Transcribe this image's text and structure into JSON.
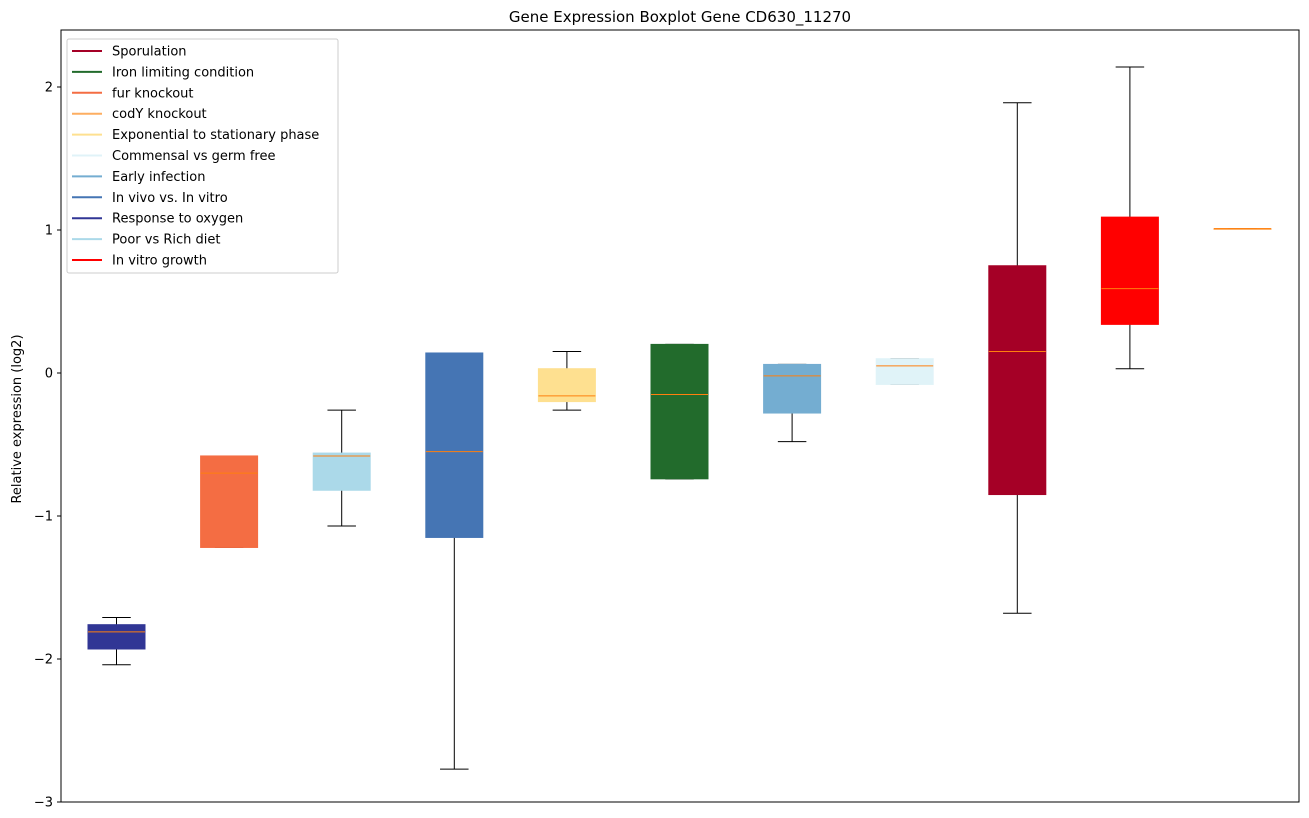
{
  "chart_data": {
    "type": "boxplot",
    "title": "Gene Expression Boxplot Gene CD630_11270",
    "xlabel": "",
    "ylabel": "Relative expression (log2)",
    "ylim": [
      -3.0,
      2.38
    ],
    "yticks": [
      {
        "value": 2,
        "label": "2"
      },
      {
        "value": 1,
        "label": "1"
      },
      {
        "value": 0,
        "label": "0"
      },
      {
        "value": -1,
        "label": "−1"
      },
      {
        "value": -2,
        "label": "−2"
      },
      {
        "value": -3,
        "label": "−3"
      }
    ],
    "grid": false,
    "legend_position": "top-left",
    "legend": [
      {
        "label": "Sporulation",
        "color": "#a50026"
      },
      {
        "label": "Iron limiting condition",
        "color": "#226b2c"
      },
      {
        "label": "fur knockout",
        "color": "#f46d43"
      },
      {
        "label": "codY knockout",
        "color": "#fdae61"
      },
      {
        "label": "Exponential to stationary phase",
        "color": "#fee090"
      },
      {
        "label": "Commensal vs germ free",
        "color": "#e0f3f8"
      },
      {
        "label": "Early infection",
        "color": "#74add1"
      },
      {
        "label": "In vivo vs. In vitro",
        "color": "#4575b4"
      },
      {
        "label": "Response to oxygen",
        "color": "#313695"
      },
      {
        "label": "Poor vs Rich diet",
        "color": "#abd9e9"
      },
      {
        "label": "In vitro growth",
        "color": "#ff0000"
      }
    ],
    "boxes": [
      {
        "group": "Response to oxygen",
        "color": "#313695",
        "whisker_low": -2.04,
        "q1": -1.93,
        "median": -1.81,
        "q3": -1.76,
        "whisker_high": -1.71
      },
      {
        "group": "fur knockout",
        "color": "#f46d43",
        "whisker_low": -1.22,
        "q1": -1.22,
        "median": -0.7,
        "q3": -0.58,
        "whisker_high": -0.58
      },
      {
        "group": "Poor vs Rich diet",
        "color": "#abd9e9",
        "whisker_low": -1.07,
        "q1": -0.82,
        "median": -0.58,
        "q3": -0.56,
        "whisker_high": -0.26
      },
      {
        "group": "In vivo vs. In vitro",
        "color": "#4575b4",
        "whisker_low": -2.77,
        "q1": -1.15,
        "median": -0.55,
        "q3": 0.14,
        "whisker_high": 0.14
      },
      {
        "group": "Exponential to stationary phase",
        "color": "#fee090",
        "whisker_low": -0.26,
        "q1": -0.2,
        "median": -0.16,
        "q3": 0.03,
        "whisker_high": 0.15
      },
      {
        "group": "Iron limiting condition",
        "color": "#226b2c",
        "whisker_low": -0.74,
        "q1": -0.74,
        "median": -0.15,
        "q3": 0.2,
        "whisker_high": 0.2
      },
      {
        "group": "Early infection",
        "color": "#74add1",
        "whisker_low": -0.48,
        "q1": -0.28,
        "median": -0.02,
        "q3": 0.06,
        "whisker_high": 0.06
      },
      {
        "group": "Commensal vs germ free",
        "color": "#e0f3f8",
        "whisker_low": -0.08,
        "q1": -0.08,
        "median": 0.05,
        "q3": 0.1,
        "whisker_high": 0.1
      },
      {
        "group": "Sporulation",
        "color": "#a50026",
        "whisker_low": -1.68,
        "q1": -0.85,
        "median": 0.15,
        "q3": 0.75,
        "whisker_high": 1.89
      },
      {
        "group": "In vitro growth",
        "color": "#ff0000",
        "whisker_low": 0.03,
        "q1": 0.34,
        "median": 0.59,
        "q3": 1.09,
        "whisker_high": 2.14
      },
      {
        "group": "codY knockout",
        "color": "#fdae61",
        "whisker_low": 1.01,
        "q1": 1.01,
        "median": 1.01,
        "q3": 1.01,
        "whisker_high": 1.01
      }
    ],
    "median_color": "#ff7f0e",
    "whisker_color": "#000000"
  }
}
